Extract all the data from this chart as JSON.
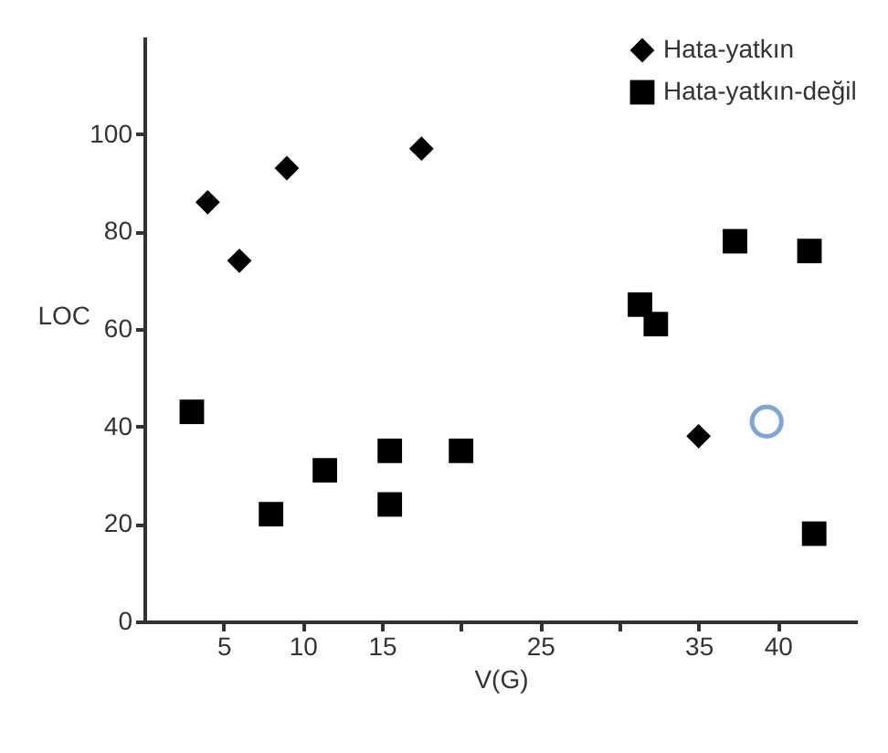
{
  "chart_data": {
    "type": "scatter",
    "xlabel": "V(G)",
    "ylabel": "LOC",
    "xlim": [
      0,
      45
    ],
    "ylim": [
      0,
      120
    ],
    "xticks": [
      5,
      10,
      15,
      {
        "value": 20,
        "label": null
      },
      25,
      {
        "value": 30,
        "label": null
      },
      35,
      40
    ],
    "yticks": [
      0,
      20,
      40,
      60,
      80,
      100
    ],
    "grid": false,
    "legend": "top right",
    "series": [
      {
        "name": "Hata-yatkın",
        "color": "#000000",
        "marker": "diamond",
        "x": [
          4,
          6,
          9,
          17.5,
          35
        ],
        "values": [
          86,
          74,
          93,
          97,
          38
        ]
      },
      {
        "name": "Hata-yatkın-değil",
        "color": "#000000",
        "marker": "square",
        "x": [
          37.3,
          42,
          31.3,
          32.3,
          3,
          8,
          11.4,
          15.5,
          15.5,
          20,
          42.3
        ],
        "values": [
          78,
          76,
          65,
          61,
          43,
          22,
          31,
          35,
          24,
          35,
          18
        ]
      },
      {
        "color": "#7ea6d8",
        "marker": "circle",
        "x": [
          39.3
        ],
        "values": [
          41
        ]
      }
    ]
  }
}
